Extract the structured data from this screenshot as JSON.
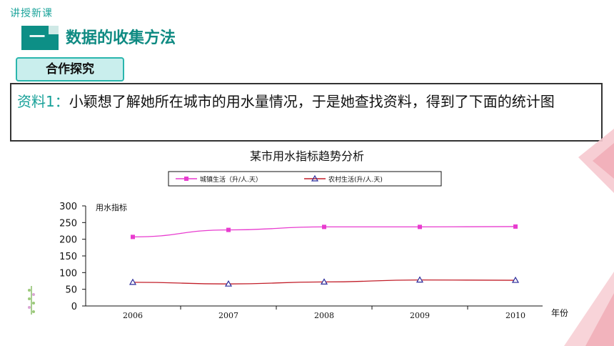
{
  "header": {
    "tag": "讲授新课",
    "section_number": "一",
    "section_title": "数据的收集方法",
    "badge": "合作探究"
  },
  "material": {
    "label": "资料1：",
    "text": "小颖想了解她所在城市的用水量情况，于是她查找资料，得到了下面的统计图"
  },
  "colors": {
    "accent": "#0d8f86",
    "urban": "#e83ccf",
    "rural": "#c21f2a",
    "rural_marker": "#2a2a9a"
  },
  "chart_data": {
    "type": "line",
    "title": "某市用水指标趋势分析",
    "ylabel": "用水指标",
    "xlabel": "年份",
    "x": [
      "2006",
      "2007",
      "2008",
      "2009",
      "2010"
    ],
    "yticks": [
      0,
      50,
      100,
      150,
      200,
      250,
      300
    ],
    "ylim": [
      0,
      300
    ],
    "legend_position": "top",
    "series": [
      {
        "name": "城镇生活（升/人.天）",
        "values": [
          207,
          228,
          237,
          237,
          238
        ],
        "marker": "square"
      },
      {
        "name": "农村生活(升/人.天)",
        "values": [
          71,
          66,
          72,
          78,
          77
        ],
        "marker": "triangle"
      }
    ]
  }
}
